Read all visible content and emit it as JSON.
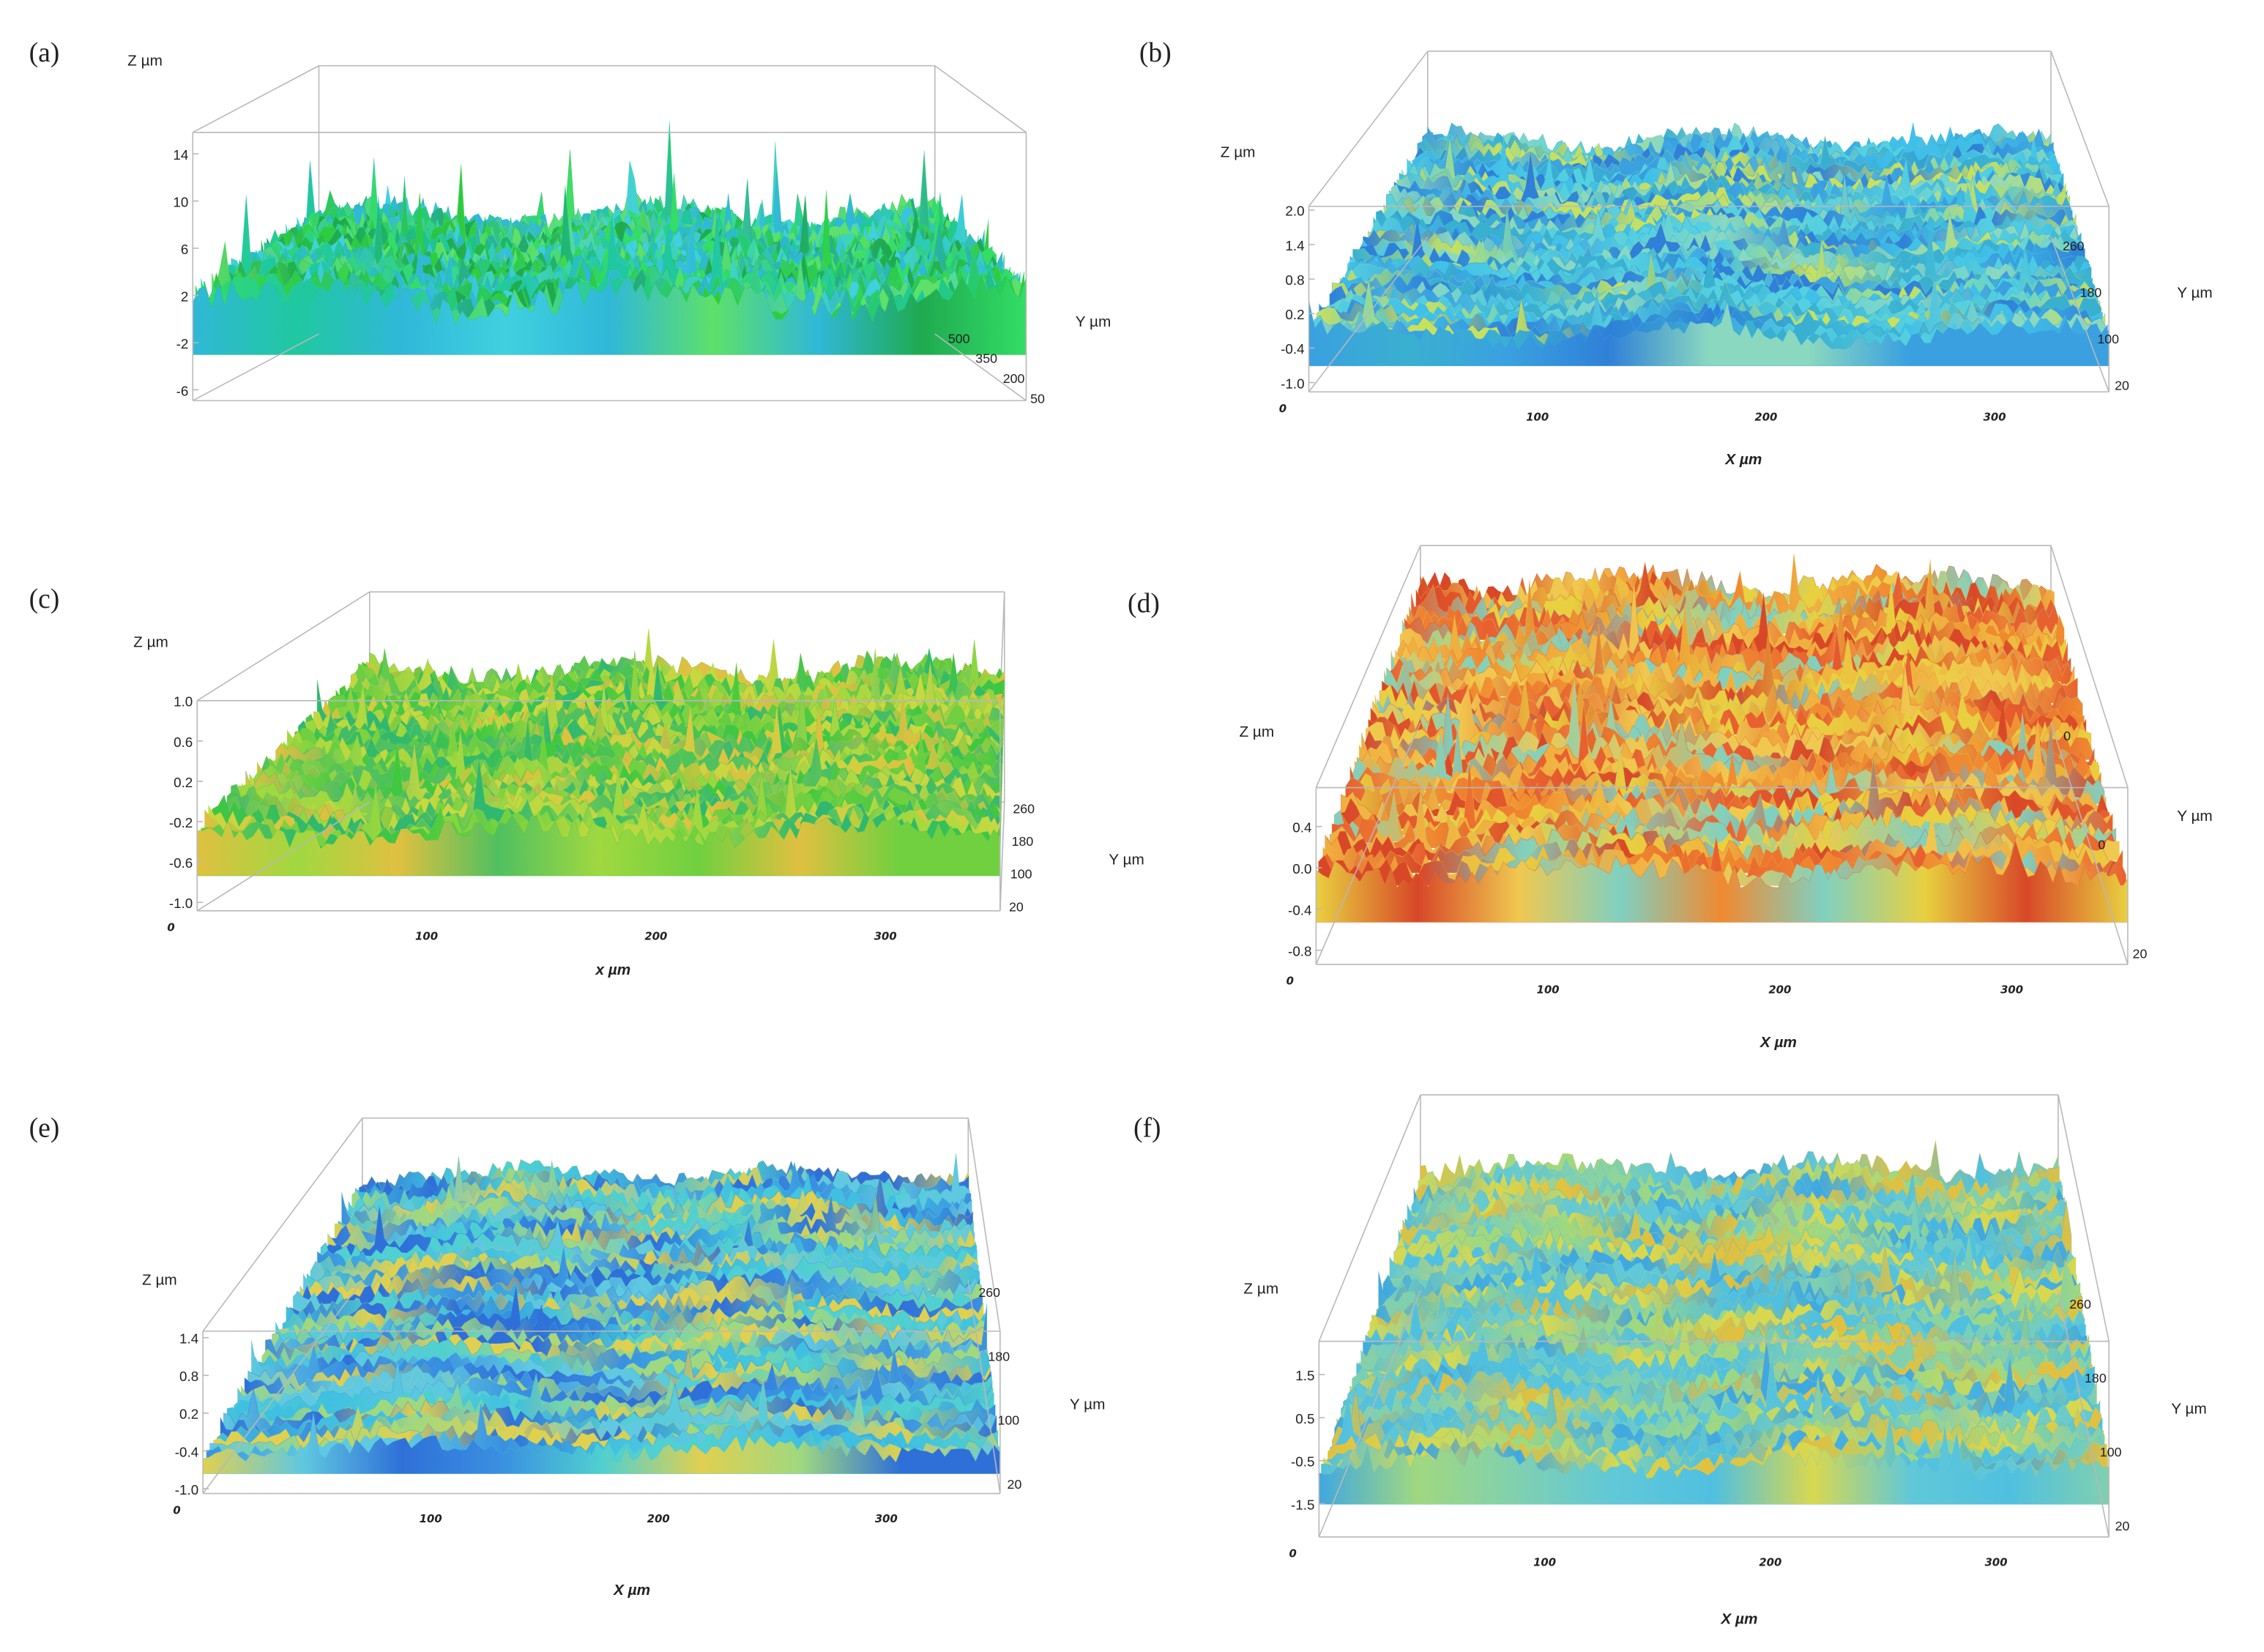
{
  "chart_data": [
    {
      "type": "heatmap",
      "panel_label": "(a)",
      "zlabel": "Z µm",
      "xlabel": "",
      "ylabel": "Y µm",
      "z_ticks": [
        "14",
        "10",
        "6",
        "2",
        "-2",
        "-6"
      ],
      "x_ticks": [],
      "y_ticks": [
        "500",
        "350",
        "200",
        "50"
      ],
      "zlim": [
        -7,
        16
      ],
      "ylim": [
        0,
        550
      ],
      "xlim": [
        0,
        350
      ],
      "grid": false,
      "colors": [
        "#2ecc40",
        "#33dd66",
        "#20c8a0",
        "#40d0e0",
        "#1faa50",
        "#5ee06a",
        "#30b8d8"
      ]
    },
    {
      "type": "heatmap",
      "panel_label": "(b)",
      "zlabel": "Z µm",
      "xlabel": "X µm",
      "ylabel": "Y µm",
      "z_ticks": [
        "2.0",
        "1.4",
        "0.8",
        "0.2",
        "-0.4",
        "-1.0"
      ],
      "x_ticks": [
        "0",
        "100",
        "200",
        "300"
      ],
      "y_ticks": [
        "260",
        "180",
        "100",
        "20"
      ],
      "zlim": [
        -1.1,
        2.0
      ],
      "ylim": [
        0,
        280
      ],
      "xlim": [
        0,
        350
      ],
      "grid": false,
      "colors": [
        "#3aa0e0",
        "#40c0e8",
        "#2f80d8",
        "#55d0e0",
        "#3ab0d0",
        "#8ad8c0",
        "#c8e060"
      ]
    },
    {
      "type": "heatmap",
      "panel_label": "(c)",
      "zlabel": "Z µm",
      "xlabel": "x µm",
      "ylabel": "Y µm",
      "z_ticks": [
        "1.0",
        "0.6",
        "0.2",
        "-0.2",
        "-0.6",
        "-1.0"
      ],
      "x_ticks": [
        "0",
        "100",
        "200",
        "300"
      ],
      "y_ticks": [
        "260",
        "180",
        "100",
        "20"
      ],
      "zlim": [
        -1.1,
        1.0
      ],
      "ylim": [
        0,
        280
      ],
      "xlim": [
        0,
        350
      ],
      "grid": false,
      "colors": [
        "#40c840",
        "#70d040",
        "#a0d840",
        "#c8d840",
        "#50c060",
        "#e0c040",
        "#30b870"
      ]
    },
    {
      "type": "heatmap",
      "panel_label": "(d)",
      "zlabel": "Z µm",
      "xlabel": "X µm",
      "ylabel": "Y µm",
      "z_ticks": [
        "0.4",
        "0.0",
        "-0.4",
        "-0.8"
      ],
      "x_ticks": [
        "0",
        "100",
        "200",
        "300"
      ],
      "y_ticks": [
        "0",
        "0",
        "20"
      ],
      "zlim": [
        -0.94,
        0.8
      ],
      "ylim": [
        0,
        280
      ],
      "xlim": [
        0,
        350
      ],
      "grid": false,
      "colors": [
        "#e86030",
        "#f08a30",
        "#f0b040",
        "#e8d040",
        "#d84828",
        "#f0c850",
        "#80d0c0"
      ]
    },
    {
      "type": "heatmap",
      "panel_label": "(e)",
      "zlabel": "Z µm",
      "xlabel": "X µm",
      "ylabel": "Y µm",
      "z_ticks": [
        "1.4",
        "0.8",
        "0.2",
        "-0.4",
        "-1.0"
      ],
      "x_ticks": [
        "0",
        "100",
        "200",
        "300"
      ],
      "y_ticks": [
        "260",
        "180",
        "100",
        "20"
      ],
      "zlim": [
        -1.07,
        1.5
      ],
      "ylim": [
        0,
        280
      ],
      "xlim": [
        0,
        350
      ],
      "grid": false,
      "colors": [
        "#40c0e0",
        "#50d0d0",
        "#3a90e0",
        "#a0d880",
        "#e0d050",
        "#60c8e0",
        "#2f70d8"
      ]
    },
    {
      "type": "heatmap",
      "panel_label": "(f)",
      "zlabel": "Z µm",
      "xlabel": "X µm",
      "ylabel": "Y µm",
      "z_ticks": [
        "1.5",
        "0.5",
        "-0.5",
        "-1.5"
      ],
      "x_ticks": [
        "0",
        "100",
        "200",
        "300"
      ],
      "y_ticks": [
        "260",
        "180",
        "100",
        "20"
      ],
      "zlim": [
        -2.3,
        2.2
      ],
      "ylim": [
        0,
        280
      ],
      "xlim": [
        0,
        350
      ],
      "grid": false,
      "colors": [
        "#60c8d8",
        "#a0d880",
        "#d8d850",
        "#50c0e0",
        "#e0c040",
        "#80d0b0",
        "#40a8e0"
      ]
    }
  ]
}
